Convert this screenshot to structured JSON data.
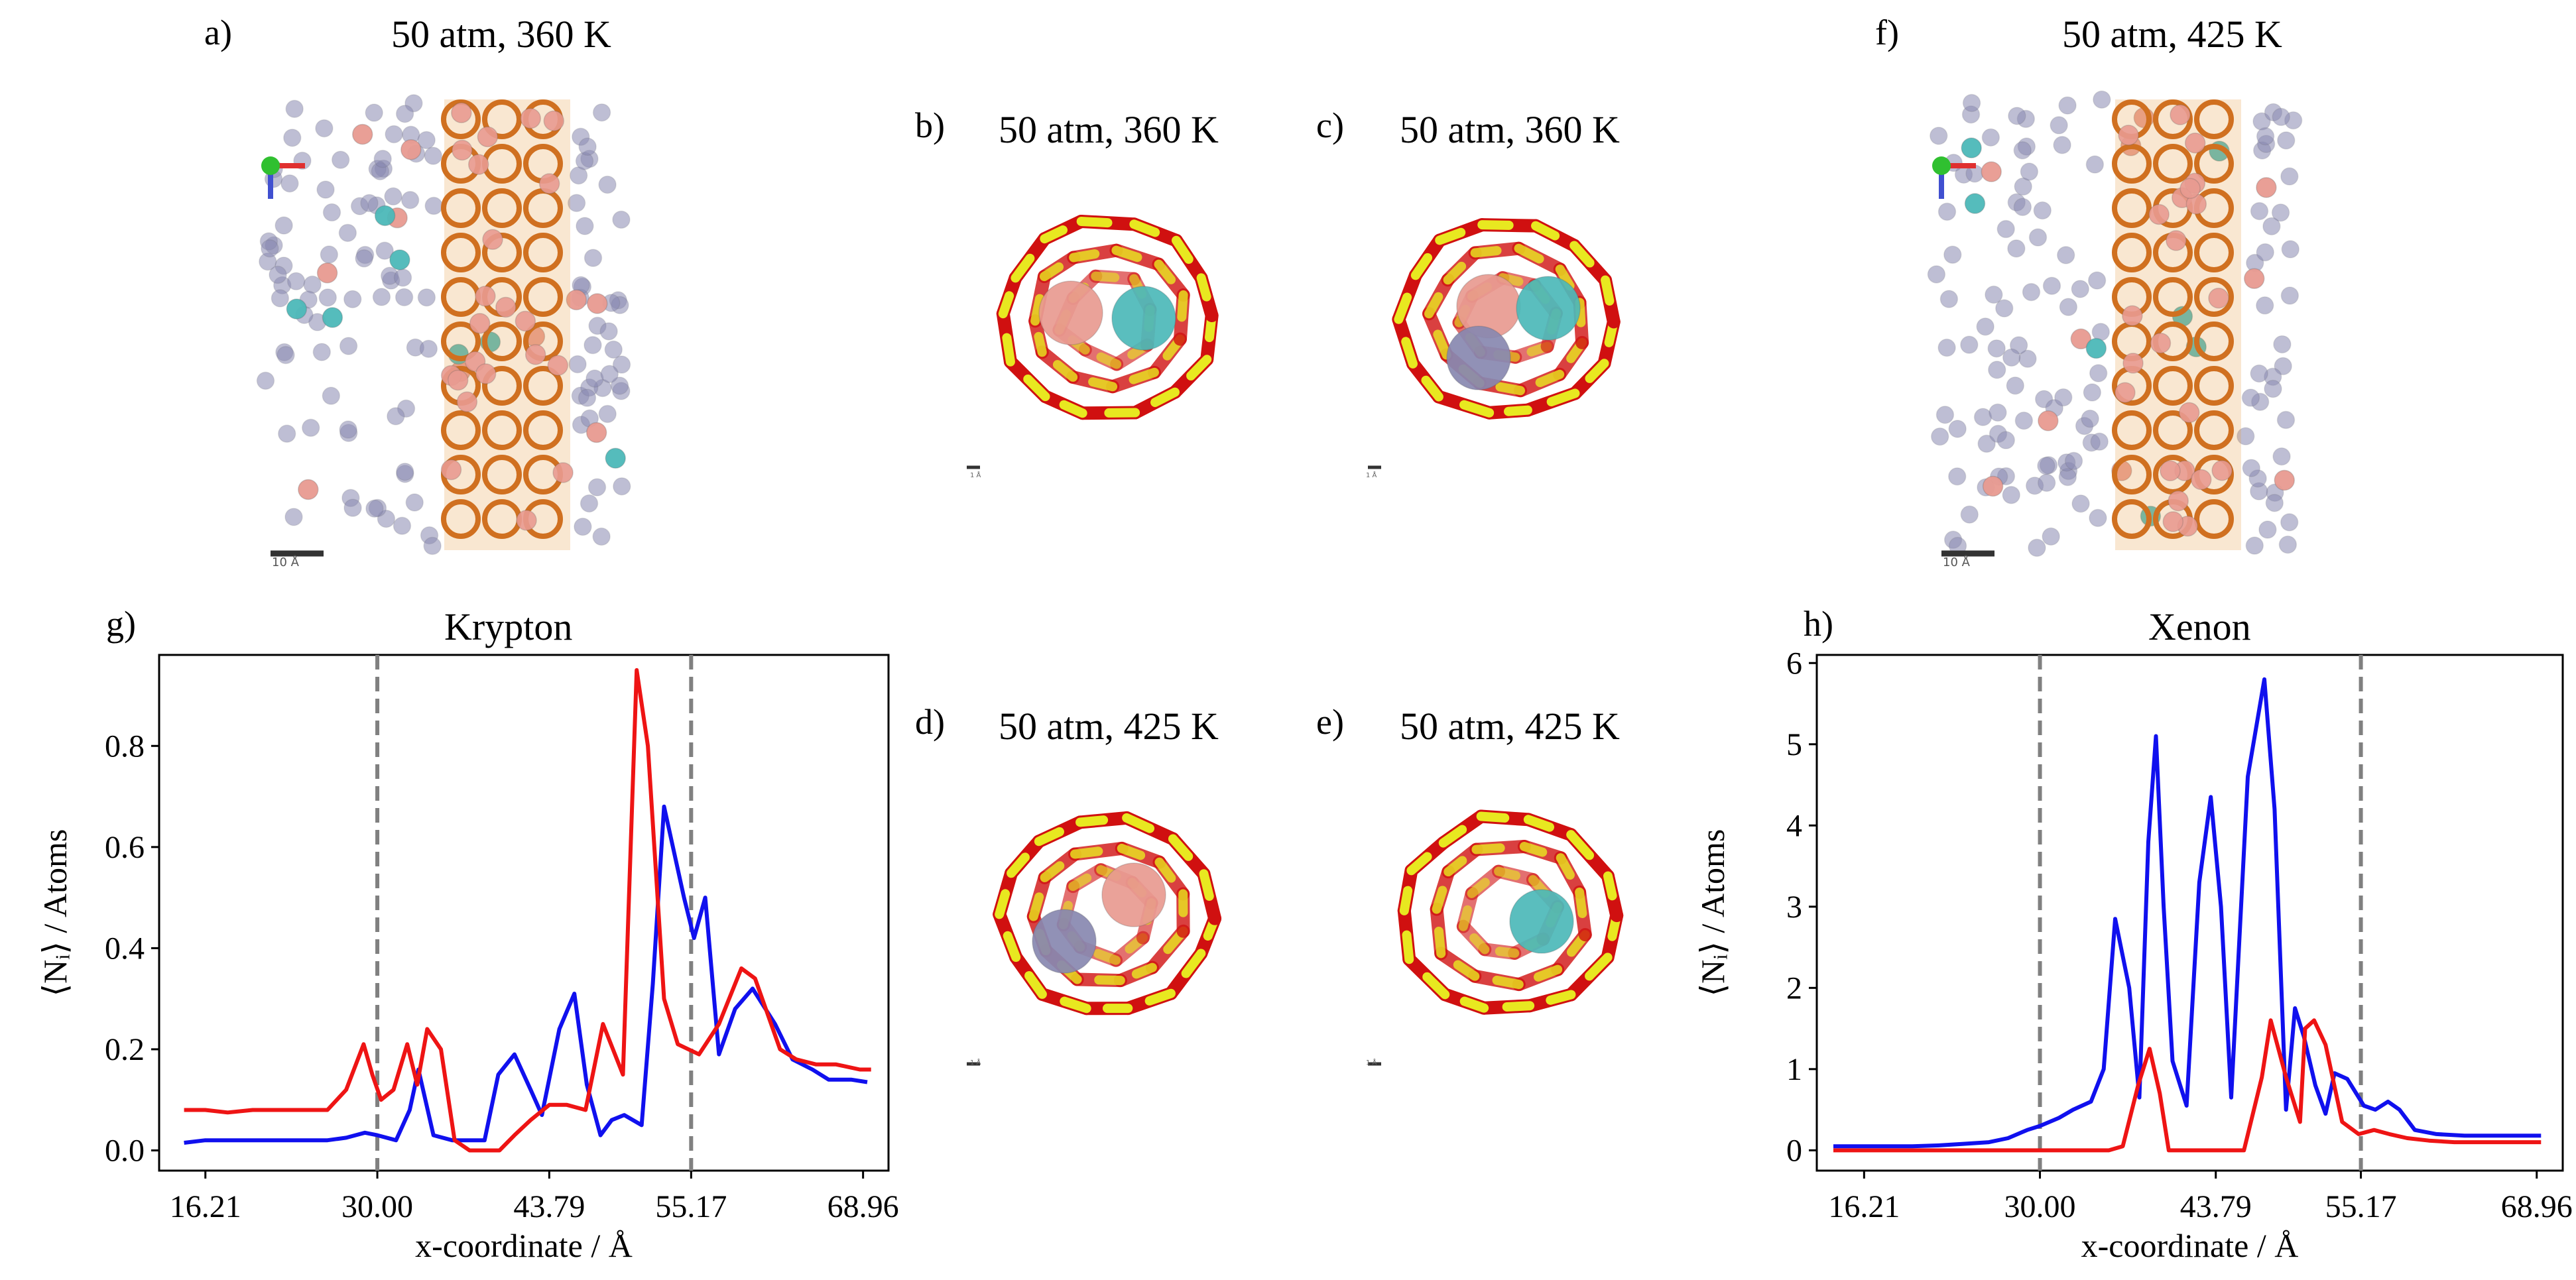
{
  "panels": {
    "a": {
      "letter": "a)",
      "title": "50 atm, 360 K",
      "scale_label": "10 Å"
    },
    "b": {
      "letter": "b)",
      "title": "50 atm, 360 K",
      "scale_label": "1 Å"
    },
    "c": {
      "letter": "c)",
      "title": "50 atm, 360 K",
      "scale_label": "1 Å"
    },
    "d": {
      "letter": "d)",
      "title": "50 atm, 425 K",
      "scale_label": "1 Å"
    },
    "e": {
      "letter": "e)",
      "title": "50 atm, 425 K",
      "scale_label": "1 Å"
    },
    "f": {
      "letter": "f)",
      "title": "50 atm, 425 K",
      "scale_label": "10 Å"
    }
  },
  "colors": {
    "blue_series": "#1010ee",
    "red_series": "#ee1414",
    "framework_o": "#d01010",
    "framework_si": "#e8e820",
    "krypton": "#e89a90",
    "xenon": "#4cb8b8",
    "other_gas": "#8888b0"
  },
  "chart_data": [
    {
      "type": "line",
      "panel_letter": "g)",
      "title": "Krypton",
      "xlabel": "x-coordinate / Å",
      "ylabel": "⟨Nᵢ⟩ / Atoms",
      "xlim": [
        12.5,
        71.0
      ],
      "ylim": [
        -0.04,
        0.98
      ],
      "xticks": [
        16.21,
        30.0,
        43.79,
        55.17,
        68.96
      ],
      "xtick_labels": [
        "16.21",
        "30.00",
        "43.79",
        "55.17",
        "68.96"
      ],
      "yticks": [
        0.0,
        0.2,
        0.4,
        0.6,
        0.8
      ],
      "ytick_labels": [
        "0.0",
        "0.2",
        "0.4",
        "0.6",
        "0.8"
      ],
      "vlines": [
        30.0,
        55.17
      ],
      "series": [
        {
          "name": "blue",
          "color": "#1010ee",
          "x": [
            14.5,
            16.2,
            18.0,
            20.0,
            22.0,
            24.0,
            26.0,
            27.5,
            29.0,
            30.0,
            31.5,
            32.6,
            33.3,
            34.5,
            36.0,
            37.2,
            38.6,
            39.7,
            41.0,
            42.3,
            43.2,
            44.6,
            45.8,
            46.8,
            47.9,
            48.8,
            49.8,
            51.2,
            52.1,
            53.0,
            54.6,
            55.4,
            56.3,
            57.4,
            58.7,
            60.1,
            61.9,
            63.3,
            64.9,
            66.2,
            68.0,
            69.3
          ],
          "values": [
            0.015,
            0.02,
            0.02,
            0.02,
            0.02,
            0.02,
            0.02,
            0.025,
            0.035,
            0.03,
            0.02,
            0.08,
            0.16,
            0.03,
            0.02,
            0.02,
            0.02,
            0.15,
            0.19,
            0.12,
            0.07,
            0.24,
            0.31,
            0.13,
            0.03,
            0.06,
            0.07,
            0.05,
            0.33,
            0.68,
            0.5,
            0.42,
            0.5,
            0.19,
            0.28,
            0.32,
            0.25,
            0.18,
            0.16,
            0.14,
            0.14,
            0.135
          ]
        },
        {
          "name": "red",
          "color": "#ee1414",
          "x": [
            14.5,
            16.2,
            18.0,
            20.0,
            22.0,
            24.0,
            26.0,
            27.5,
            28.9,
            29.6,
            30.3,
            31.3,
            32.4,
            33.2,
            34.0,
            35.1,
            36.2,
            37.4,
            38.5,
            39.8,
            41.0,
            42.3,
            43.8,
            45.2,
            46.7,
            48.1,
            49.7,
            50.8,
            51.7,
            53.0,
            54.1,
            55.8,
            57.4,
            59.2,
            60.3,
            62.3,
            63.6,
            65.2,
            66.8,
            68.7,
            69.6
          ],
          "values": [
            0.08,
            0.08,
            0.075,
            0.08,
            0.08,
            0.08,
            0.08,
            0.12,
            0.21,
            0.15,
            0.1,
            0.12,
            0.21,
            0.13,
            0.24,
            0.2,
            0.02,
            0.0,
            0.0,
            0.0,
            0.03,
            0.06,
            0.09,
            0.09,
            0.08,
            0.25,
            0.15,
            0.95,
            0.8,
            0.3,
            0.21,
            0.19,
            0.25,
            0.36,
            0.34,
            0.2,
            0.18,
            0.17,
            0.17,
            0.16,
            0.16
          ]
        }
      ]
    },
    {
      "type": "line",
      "panel_letter": "h)",
      "title": "Xenon",
      "xlabel": "x-coordinate / Å",
      "ylabel": "⟨Nᵢ⟩ / Atoms",
      "xlim": [
        12.5,
        71.0
      ],
      "ylim": [
        -0.25,
        6.1
      ],
      "xticks": [
        16.21,
        30.0,
        43.79,
        55.17,
        68.96
      ],
      "xtick_labels": [
        "16.21",
        "30.00",
        "43.79",
        "55.17",
        "68.96"
      ],
      "yticks": [
        0,
        1,
        2,
        3,
        4,
        5,
        6
      ],
      "ytick_labels": [
        "0",
        "1",
        "2",
        "3",
        "4",
        "5",
        "6"
      ],
      "vlines": [
        30.0,
        55.17
      ],
      "series": [
        {
          "name": "blue",
          "color": "#1010ee",
          "x": [
            13.8,
            16.2,
            18.0,
            20.0,
            22.0,
            24.0,
            26.0,
            27.5,
            29.0,
            30.0,
            31.5,
            32.6,
            34.0,
            35.0,
            35.9,
            37.0,
            37.8,
            38.5,
            39.1,
            39.7,
            40.4,
            41.5,
            42.5,
            43.4,
            44.2,
            45.0,
            46.3,
            47.6,
            48.4,
            49.3,
            50.0,
            50.7,
            51.6,
            52.4,
            53.1,
            54.1,
            55.4,
            56.3,
            57.3,
            58.2,
            59.4,
            61.1,
            63.3,
            66.0,
            68.0,
            69.3
          ],
          "values": [
            0.05,
            0.05,
            0.05,
            0.05,
            0.06,
            0.08,
            0.1,
            0.15,
            0.25,
            0.3,
            0.4,
            0.5,
            0.6,
            1.0,
            2.85,
            2.0,
            0.65,
            3.8,
            5.1,
            3.0,
            1.1,
            0.55,
            3.3,
            4.35,
            3.0,
            0.65,
            4.6,
            5.8,
            4.2,
            0.5,
            1.75,
            1.4,
            0.8,
            0.45,
            0.95,
            0.88,
            0.55,
            0.5,
            0.6,
            0.5,
            0.25,
            0.2,
            0.18,
            0.18,
            0.18,
            0.18
          ]
        },
        {
          "name": "red",
          "color": "#ee1414",
          "x": [
            13.8,
            16.2,
            20.0,
            24.0,
            28.0,
            30.0,
            31.5,
            33.0,
            34.4,
            35.4,
            36.5,
            37.7,
            38.6,
            39.4,
            40.1,
            41.4,
            42.3,
            43.5,
            44.8,
            46.0,
            47.4,
            48.1,
            49.3,
            50.4,
            50.8,
            51.5,
            52.4,
            53.7,
            55.0,
            56.2,
            57.4,
            58.8,
            60.5,
            62.5,
            64.5,
            66.5,
            69.3
          ],
          "values": [
            0.0,
            0.0,
            0.0,
            0.0,
            0.0,
            0.0,
            0.0,
            0.0,
            0.0,
            0.0,
            0.05,
            0.8,
            1.25,
            0.7,
            0.0,
            0.0,
            0.0,
            0.0,
            0.0,
            0.0,
            0.9,
            1.6,
            0.9,
            0.35,
            1.5,
            1.6,
            1.3,
            0.35,
            0.2,
            0.25,
            0.2,
            0.15,
            0.12,
            0.1,
            0.1,
            0.1,
            0.1
          ]
        }
      ]
    }
  ]
}
